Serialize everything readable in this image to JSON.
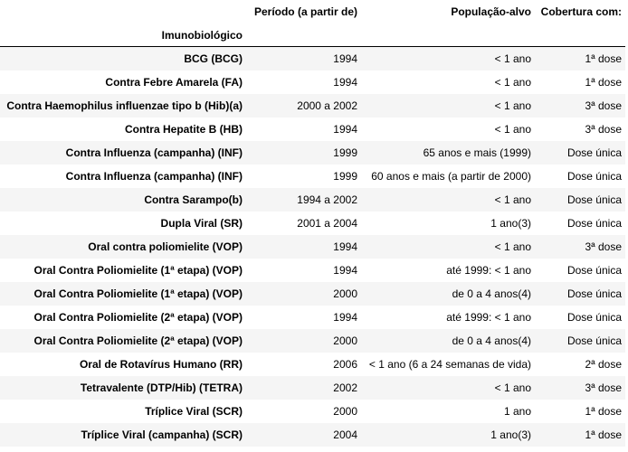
{
  "table": {
    "index_name": "Imunobiológico",
    "columns": [
      "Período (a partir de)",
      "População-alvo",
      "Cobertura com:"
    ],
    "rows": [
      {
        "name": "BCG (BCG)",
        "periodo": "1994",
        "populacao": "< 1 ano",
        "cobertura": "1ª dose"
      },
      {
        "name": "Contra Febre Amarela (FA)",
        "periodo": "1994",
        "populacao": "< 1 ano",
        "cobertura": "1ª dose"
      },
      {
        "name": "Contra Haemophilus influenzae tipo b (Hib)(a)",
        "periodo": "2000 a 2002",
        "populacao": "< 1 ano",
        "cobertura": "3ª dose"
      },
      {
        "name": "Contra Hepatite B (HB)",
        "periodo": "1994",
        "populacao": "< 1 ano",
        "cobertura": "3ª dose"
      },
      {
        "name": "Contra Influenza (campanha) (INF)",
        "periodo": "1999",
        "populacao": "65 anos e mais (1999)",
        "cobertura": "Dose única"
      },
      {
        "name": "Contra Influenza (campanha) (INF)",
        "periodo": "1999",
        "populacao": "60 anos e mais (a partir de 2000)",
        "cobertura": "Dose única"
      },
      {
        "name": "Contra Sarampo(b)",
        "periodo": "1994 a 2002",
        "populacao": "< 1 ano",
        "cobertura": "Dose única"
      },
      {
        "name": "Dupla Viral (SR)",
        "periodo": "2001 a 2004",
        "populacao": "1 ano(3)",
        "cobertura": "Dose única"
      },
      {
        "name": "Oral contra poliomielite (VOP)",
        "periodo": "1994",
        "populacao": "< 1 ano",
        "cobertura": "3ª dose"
      },
      {
        "name": "Oral Contra Poliomielite (1ª etapa) (VOP)",
        "periodo": "1994",
        "populacao": "até 1999: < 1 ano",
        "cobertura": "Dose única"
      },
      {
        "name": "Oral Contra Poliomielite (1ª etapa) (VOP)",
        "periodo": "2000",
        "populacao": "de 0 a 4 anos(4)",
        "cobertura": "Dose única"
      },
      {
        "name": "Oral Contra Poliomielite (2ª etapa) (VOP)",
        "periodo": "1994",
        "populacao": "até 1999: < 1 ano",
        "cobertura": "Dose única"
      },
      {
        "name": "Oral Contra Poliomielite (2ª etapa) (VOP)",
        "periodo": "2000",
        "populacao": "de 0 a 4 anos(4)",
        "cobertura": "Dose única"
      },
      {
        "name": "Oral de Rotavírus Humano (RR)",
        "periodo": "2006",
        "populacao": "< 1 ano (6 a 24 semanas de vida)",
        "cobertura": "2ª dose"
      },
      {
        "name": "Tetravalente (DTP/Hib) (TETRA)",
        "periodo": "2002",
        "populacao": "< 1 ano",
        "cobertura": "3ª dose"
      },
      {
        "name": "Tríplice Viral (SCR)",
        "periodo": "2000",
        "populacao": "1 ano",
        "cobertura": "1ª dose"
      },
      {
        "name": "Tríplice Viral (campanha) (SCR)",
        "periodo": "2004",
        "populacao": "1 ano(3)",
        "cobertura": "1ª dose"
      }
    ]
  }
}
